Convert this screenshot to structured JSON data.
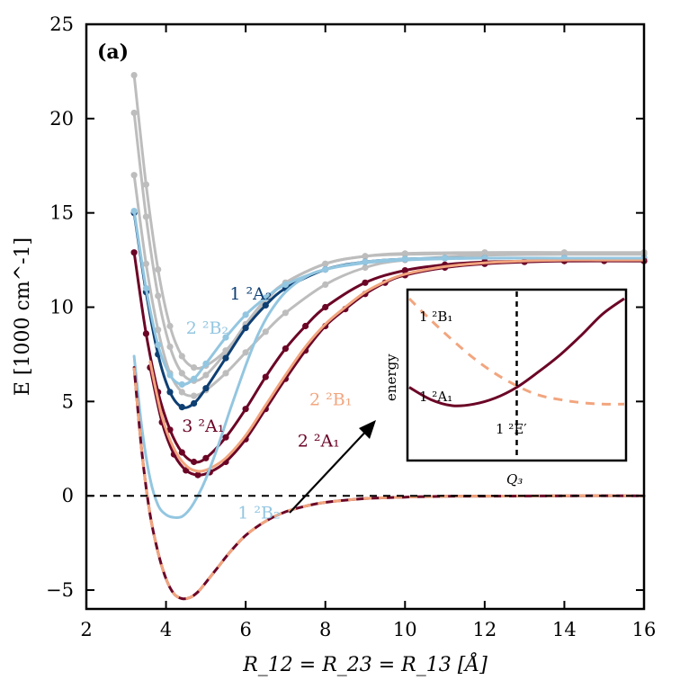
{
  "panel_label": "(a)",
  "chart_data": {
    "type": "line",
    "xlabel": "R_12 = R_23 = R_13 [Å]",
    "ylabel": "E [1000 cm^-1]",
    "xlim": [
      2,
      16
    ],
    "ylim": [
      -6,
      25
    ],
    "xticks": [
      2,
      4,
      6,
      8,
      10,
      12,
      14,
      16
    ],
    "yticks": [
      -5,
      0,
      5,
      10,
      15,
      20,
      25
    ],
    "ytick_labels": [
      "−5",
      "0",
      "5",
      "10",
      "15",
      "20",
      "25"
    ],
    "grid": false,
    "reference_line": {
      "y": 0,
      "style": "dashed"
    },
    "colors": {
      "grey": "#bdbdbd",
      "navy": "#0e3f73",
      "maroon": "#6b0526",
      "lightblue": "#93c6e0",
      "salmon": "#f2a57e"
    },
    "labels": [
      {
        "text": "1 ²A₂",
        "x": 5.6,
        "y": 10.4,
        "color": "#0e3f73"
      },
      {
        "text": "2 ²B₂",
        "x": 4.5,
        "y": 8.6,
        "color": "#93c6e0"
      },
      {
        "text": "2 ²B₁",
        "x": 7.6,
        "y": 4.8,
        "color": "#f2a57e"
      },
      {
        "text": "3 ²A₁",
        "x": 4.4,
        "y": 3.4,
        "color": "#6b0526"
      },
      {
        "text": "2 ²A₁",
        "x": 7.3,
        "y": 2.6,
        "color": "#6b0526"
      },
      {
        "text": "1 ²B₂",
        "x": 5.8,
        "y": -1.2,
        "color": "#93c6e0"
      }
    ],
    "series": [
      {
        "color": "#bdbdbd",
        "markers": true,
        "x": [
          3.2,
          3.5,
          3.8,
          4.1,
          4.4,
          4.7,
          5.0,
          5.5,
          6.0,
          6.5,
          7.0,
          8.0,
          9.0,
          10.0,
          12.0,
          14.0,
          16.0
        ],
        "y": [
          22.3,
          16.5,
          12.0,
          9.0,
          7.4,
          6.8,
          6.9,
          7.7,
          9.0,
          10.3,
          11.3,
          12.3,
          12.7,
          12.85,
          12.9,
          12.9,
          12.9
        ]
      },
      {
        "color": "#bdbdbd",
        "markers": true,
        "x": [
          3.2,
          3.5,
          3.8,
          4.1,
          4.4,
          4.7,
          5.0,
          5.5,
          6.0,
          6.5,
          7.0,
          8.0,
          9.0,
          10.0,
          12.0,
          14.0,
          16.0
        ],
        "y": [
          20.3,
          14.8,
          10.6,
          7.9,
          6.5,
          6.1,
          6.4,
          7.6,
          9.1,
          10.4,
          11.3,
          12.3,
          12.7,
          12.8,
          12.85,
          12.85,
          12.85
        ]
      },
      {
        "color": "#bdbdbd",
        "markers": true,
        "x": [
          3.2,
          3.5,
          3.8,
          4.1,
          4.4,
          4.7,
          5.0,
          5.5,
          6.0,
          6.5,
          7.0,
          8.0,
          9.0,
          10.0,
          12.0,
          14.0,
          16.0
        ],
        "y": [
          17.0,
          12.3,
          8.8,
          6.5,
          5.5,
          5.3,
          5.6,
          6.5,
          7.6,
          8.7,
          9.7,
          11.2,
          12.1,
          12.5,
          12.75,
          12.8,
          12.8
        ]
      },
      {
        "color": "#0e3f73",
        "markers": true,
        "x": [
          3.2,
          3.5,
          3.8,
          4.1,
          4.4,
          4.7,
          5.0,
          5.5,
          6.0,
          6.5,
          7.0,
          8.0,
          9.0,
          10.0,
          11.0,
          12.0,
          14.0,
          16.0
        ],
        "y": [
          15.0,
          10.8,
          7.5,
          5.5,
          4.7,
          4.9,
          5.7,
          7.3,
          8.9,
          10.1,
          11.0,
          12.0,
          12.4,
          12.55,
          12.6,
          12.6,
          12.6,
          12.6
        ]
      },
      {
        "color": "#93c6e0",
        "markers": true,
        "x": [
          3.2,
          3.5,
          3.8,
          4.1,
          4.4,
          4.7,
          5.0,
          5.5,
          6.0,
          6.5,
          7.0,
          8.0,
          9.0,
          10.0,
          11.0,
          12.0,
          14.0,
          16.0
        ],
        "y": [
          15.1,
          11.0,
          8.0,
          6.4,
          5.9,
          6.2,
          7.0,
          8.4,
          9.6,
          10.5,
          11.2,
          12.0,
          12.4,
          12.55,
          12.6,
          12.6,
          12.6,
          12.6
        ]
      },
      {
        "color": "#6b0526",
        "markers": true,
        "x": [
          3.2,
          3.5,
          3.8,
          4.1,
          4.4,
          4.7,
          5.0,
          5.5,
          6.0,
          6.5,
          7.0,
          7.5,
          8.0,
          9.0,
          10.0,
          11.0,
          12.0,
          14.0,
          16.0
        ],
        "y": [
          12.9,
          8.6,
          5.5,
          3.5,
          2.3,
          1.8,
          2.0,
          3.1,
          4.6,
          6.3,
          7.8,
          9.0,
          10.0,
          11.3,
          11.95,
          12.25,
          12.4,
          12.45,
          12.45
        ]
      },
      {
        "color": "#6b0526",
        "markers": true,
        "x": [
          3.6,
          3.9,
          4.2,
          4.5,
          4.8,
          5.1,
          5.5,
          6.0,
          6.5,
          7.0,
          7.5,
          8.0,
          8.5,
          9.0,
          9.5,
          10.0,
          11.0,
          12.0,
          13.0,
          14.0,
          15.0,
          16.0
        ],
        "y": [
          6.8,
          3.9,
          2.2,
          1.35,
          1.1,
          1.25,
          1.8,
          3.0,
          4.6,
          6.2,
          7.7,
          9.0,
          9.9,
          10.7,
          11.3,
          11.7,
          12.1,
          12.3,
          12.4,
          12.45,
          12.45,
          12.45
        ]
      },
      {
        "color": "#f2a57e",
        "markers": false,
        "x": [
          3.6,
          3.9,
          4.2,
          4.5,
          4.8,
          5.1,
          5.5,
          6.0,
          6.5,
          7.0,
          7.5,
          8.0,
          8.5,
          9.0,
          9.5,
          10.0,
          11.0,
          12.0,
          13.0,
          14.0,
          15.0,
          16.0
        ],
        "y": [
          7.1,
          4.2,
          2.5,
          1.6,
          1.3,
          1.45,
          2.0,
          3.2,
          4.8,
          6.4,
          7.9,
          9.1,
          10.0,
          10.8,
          11.35,
          11.75,
          12.15,
          12.35,
          12.45,
          12.5,
          12.5,
          12.5
        ]
      },
      {
        "color": "#93c6e0",
        "markers": false,
        "x": [
          3.2,
          3.4,
          3.6,
          3.8,
          4.0,
          4.2,
          4.4,
          4.6,
          4.8,
          5.0,
          5.3,
          5.6,
          6.0,
          6.3,
          6.6,
          7.0,
          7.5,
          8.0,
          9.0,
          10.0,
          12.0,
          14.0,
          16.0
        ],
        "y": [
          7.4,
          3.5,
          0.9,
          -0.5,
          -1.0,
          -1.15,
          -1.1,
          -0.7,
          0.0,
          0.9,
          2.6,
          4.5,
          6.9,
          8.5,
          9.7,
          10.8,
          11.6,
          12.0,
          12.35,
          12.5,
          12.6,
          12.6,
          12.6
        ]
      },
      {
        "color": "#6b0526",
        "markers": false,
        "dashed_overlay": "#f2a57e",
        "x": [
          3.2,
          3.4,
          3.6,
          3.8,
          4.0,
          4.2,
          4.4,
          4.6,
          4.8,
          5.0,
          5.3,
          5.6,
          6.0,
          6.5,
          7.0,
          7.5,
          8.0,
          9.0,
          10.0,
          11.0,
          12.0,
          14.0,
          16.0
        ],
        "y": [
          6.8,
          2.2,
          -1.0,
          -3.0,
          -4.4,
          -5.2,
          -5.45,
          -5.4,
          -5.1,
          -4.6,
          -3.8,
          -3.0,
          -2.1,
          -1.35,
          -0.85,
          -0.55,
          -0.35,
          -0.15,
          -0.07,
          -0.03,
          -0.02,
          0.0,
          0.0
        ]
      }
    ],
    "inset": {
      "ylabel": "energy",
      "xlabel": "Q₃",
      "labels": {
        "b1": "1 ²B₁",
        "a1": "1 ²A₁",
        "e": "1 ²E′"
      },
      "series": [
        {
          "color": "#6b0526",
          "style": "solid",
          "x": [
            0.0,
            0.1,
            0.2,
            0.3,
            0.4,
            0.5,
            0.6,
            0.7,
            0.8,
            0.9,
            1.0
          ],
          "y": [
            0.42,
            0.34,
            0.3,
            0.31,
            0.35,
            0.42,
            0.52,
            0.63,
            0.76,
            0.9,
            1.0
          ]
        },
        {
          "color": "#f2a57e",
          "style": "dashed",
          "x": [
            0.0,
            0.1,
            0.2,
            0.3,
            0.4,
            0.5,
            0.6,
            0.7,
            0.8,
            0.9,
            1.0
          ],
          "y": [
            1.0,
            0.86,
            0.73,
            0.61,
            0.51,
            0.43,
            0.37,
            0.34,
            0.32,
            0.31,
            0.31
          ]
        }
      ],
      "vline_x": 0.5
    }
  }
}
